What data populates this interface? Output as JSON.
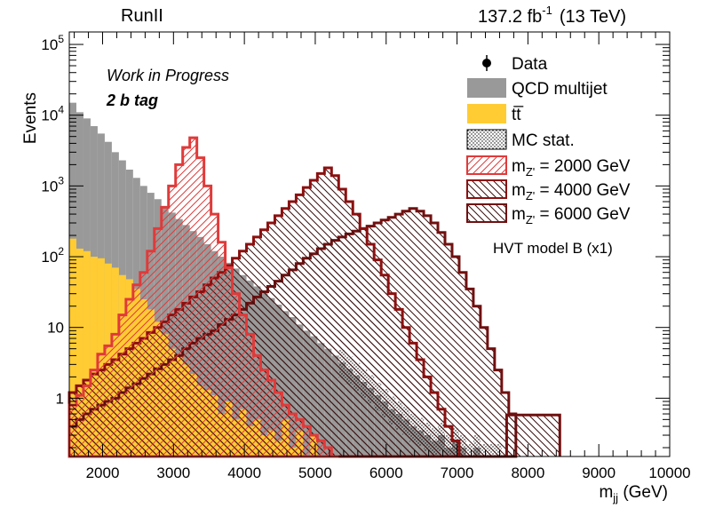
{
  "header": {
    "left": "RunII",
    "lumi_value": "137.2 fb",
    "lumi_exp": "-1",
    "energy": "(13 TeV)"
  },
  "annotations": {
    "status": "Work in Progress",
    "tag": "2 b tag",
    "model": "HVT model B (x1)"
  },
  "legend": {
    "data": "Data",
    "qcd": "QCD multijet",
    "ttbar": "tt̅",
    "mcstat": "MC stat.",
    "z2000": {
      "prefix": "m",
      "sub": "Z'",
      "suffix": " = 2000 GeV"
    },
    "z4000": {
      "prefix": "m",
      "sub": "Z'",
      "suffix": " = 4000 GeV"
    },
    "z6000": {
      "prefix": "m",
      "sub": "Z'",
      "suffix": " = 6000 GeV"
    }
  },
  "colors": {
    "qcd": "#999999",
    "ttbar": "#ffcc33",
    "z2000": "#e03a3a",
    "z4000": "#8b1010",
    "z6000": "#701010"
  },
  "chart_data": {
    "type": "bar",
    "log_y": true,
    "xlabel": {
      "main": "m",
      "sub": "jj",
      "unit": " (GeV)"
    },
    "ylabel": "Events",
    "xlim": [
      1530,
      10000
    ],
    "ylim": [
      0.15,
      150000
    ],
    "x_ticks": [
      {
        "value": 2000,
        "label": "2000"
      },
      {
        "value": 3000,
        "label": "3000"
      },
      {
        "value": 4000,
        "label": "4000"
      },
      {
        "value": 5000,
        "label": "5000"
      },
      {
        "value": 6000,
        "label": "6000"
      },
      {
        "value": 7000,
        "label": "7000"
      },
      {
        "value": 8000,
        "label": "8000"
      },
      {
        "value": 9000,
        "label": "9000"
      },
      {
        "value": 10000,
        "label": "10000"
      }
    ],
    "y_ticks": [
      {
        "value": 1,
        "label": "1",
        "exp": ""
      },
      {
        "value": 10,
        "label": "10",
        "exp": ""
      },
      {
        "value": 100,
        "label": "10",
        "exp": "2"
      },
      {
        "value": 1000,
        "label": "10",
        "exp": "3"
      },
      {
        "value": 10000,
        "label": "10",
        "exp": "4"
      },
      {
        "value": 100000,
        "label": "10",
        "exp": "5"
      }
    ],
    "bin_width": 100,
    "bin_start": 1530,
    "series": [
      {
        "key": "ttbar",
        "name": "tt̅",
        "kind": "stack-fill",
        "values": [
          180,
          130,
          120,
          100,
          95,
          80,
          70,
          55,
          48,
          35,
          25,
          18,
          12,
          8,
          5,
          4,
          3,
          2.2,
          1.5,
          1.3,
          1.1,
          0.6,
          0.9,
          0.5,
          0.7,
          0.4,
          0.5,
          0.3,
          0.35,
          0.25,
          0.5,
          0.2,
          0.35,
          0.15,
          0.3,
          0.15,
          0.15,
          0.15,
          0.15,
          0.15
        ]
      },
      {
        "key": "qcd",
        "name": "QCD multijet",
        "kind": "stack-total",
        "values": [
          15000,
          11000,
          9000,
          7000,
          5500,
          4200,
          3000,
          2300,
          1700,
          1300,
          1000,
          800,
          650,
          520,
          420,
          340,
          280,
          230,
          190,
          150,
          120,
          100,
          82,
          68,
          55,
          46,
          38,
          32,
          26,
          21,
          17,
          14,
          11,
          9,
          7.5,
          6,
          5,
          4,
          3.2,
          2.6,
          2.1,
          1.7,
          1.4,
          1.1,
          0.9,
          0.7,
          0.6,
          0.5,
          0.4,
          0.35,
          0.3,
          0.25,
          0.3,
          0.2,
          0.25,
          0.2,
          0.15,
          0.2,
          0.15,
          0.15,
          0.15
        ]
      },
      {
        "key": "z2000",
        "name": "m_Z' = 2000 GeV",
        "kind": "signal",
        "values": [
          0.8,
          1.1,
          1.5,
          2.5,
          4.2,
          5.5,
          8,
          15,
          25,
          40,
          60,
          120,
          250,
          500,
          1000,
          2000,
          3500,
          4800,
          2500,
          1000,
          400,
          160,
          70,
          30,
          15,
          8,
          4,
          2.5,
          1.8,
          1.2,
          0.8,
          0.6,
          0.5,
          0.4,
          0.3,
          0.25,
          0.2,
          0.15
        ]
      },
      {
        "key": "z4000",
        "name": "m_Z' = 4000 GeV",
        "kind": "signal",
        "values": [
          1.2,
          1.5,
          1.8,
          2.2,
          2.5,
          3,
          3.5,
          4.2,
          5,
          6,
          7,
          8.5,
          10,
          12,
          15,
          18,
          22,
          27,
          32,
          40,
          50,
          60,
          75,
          95,
          120,
          150,
          190,
          240,
          300,
          380,
          480,
          600,
          750,
          950,
          1200,
          1500,
          1800,
          1400,
          900,
          600,
          400,
          250,
          150,
          90,
          55,
          30,
          18,
          10,
          6,
          3.5,
          2,
          1.2,
          0.7,
          0.4,
          0.25
        ]
      },
      {
        "key": "z6000",
        "name": "m_Z' = 6000 GeV",
        "kind": "signal",
        "values": [
          0.4,
          0.5,
          0.6,
          0.7,
          0.8,
          0.9,
          1,
          1.2,
          1.4,
          1.6,
          1.9,
          2.2,
          2.6,
          3,
          3.5,
          4,
          5,
          6,
          7,
          8,
          9,
          11,
          13,
          15,
          18,
          22,
          27,
          32,
          38,
          45,
          55,
          65,
          80,
          95,
          110,
          130,
          150,
          170,
          190,
          210,
          230,
          250,
          270,
          300,
          330,
          360,
          400,
          440,
          480,
          440,
          380,
          300,
          220,
          150,
          100,
          60,
          35,
          20,
          10,
          5,
          2.5,
          1.2,
          0.6
        ]
      }
    ]
  }
}
